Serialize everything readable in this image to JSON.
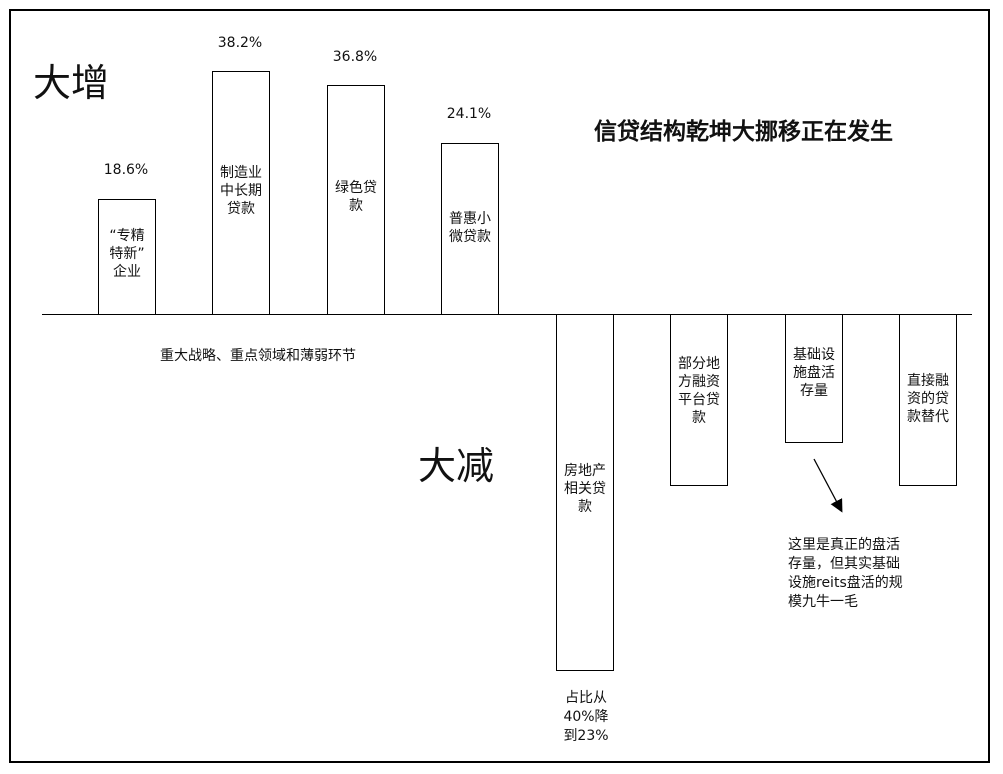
{
  "title": "信贷结构乾坤大挪移正在发生",
  "increase_label": "大增",
  "decrease_label": "大减",
  "increase_note": "重大战略、重点领域和薄弱环节",
  "realestate_note": "占比从\n40%降\n到23%",
  "infra_note": "这里是真正的盘活\n存量，但其实基础\n设施reits盘活的规\n模九牛一毛",
  "bars_up": [
    {
      "label": "“专精\n特新”\n企业",
      "pct": "18.6%"
    },
    {
      "label": "制造业\n中长期\n贷款",
      "pct": "38.2%"
    },
    {
      "label": "绿色贷\n款",
      "pct": "36.8%"
    },
    {
      "label": "普惠小\n微贷款",
      "pct": "24.1%"
    }
  ],
  "bars_down": [
    {
      "label": "房地产\n相关贷\n款"
    },
    {
      "label": "部分地\n方融资\n平台贷\n款"
    },
    {
      "label": "基础设\n施盘活\n存量"
    },
    {
      "label": "直接融\n资的贷\n款替代"
    }
  ]
}
